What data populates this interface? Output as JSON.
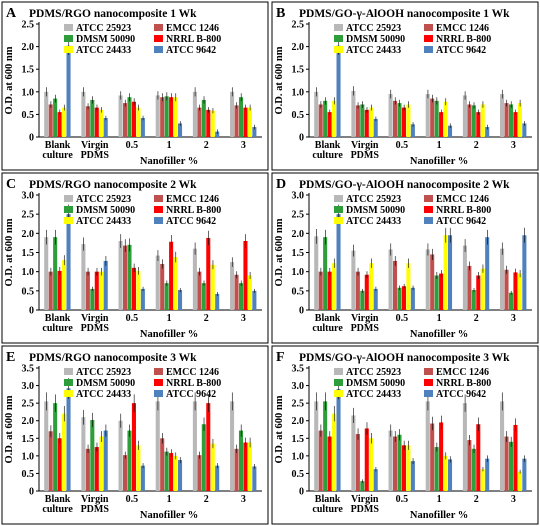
{
  "legend_labels": [
    "ATCC 25923",
    "EMCC 1246",
    "DMSM 50090",
    "NRRL B-800",
    "ATCC 24433",
    "ATCC 9642"
  ],
  "colors": {
    "ATCC 25923": "#b8b8b8",
    "EMCC 1246": "#c0504d",
    "DMSM 50090": "#2e9e3a",
    "NRRL B-800": "#ff0000",
    "ATCC 24433": "#ffff00",
    "ATCC 9642": "#4f81bd"
  },
  "chart_data": [
    {
      "type": "bar",
      "panel": "A",
      "title": "PDMS/RGO nanocomposite 1 Wk",
      "ylabel": "O.D. at 600 nm",
      "xlabel": "Nanofiller %",
      "ylim": [
        0,
        2.5
      ],
      "yticks": [
        0,
        0.5,
        1,
        1.5,
        2,
        2.5
      ],
      "categories": [
        "Blank culture",
        "Virgin PDMS",
        "0.5",
        "1",
        "2",
        "3"
      ],
      "series": [
        {
          "name": "ATCC 25923",
          "values": [
            1.0,
            1.0,
            0.92,
            0.92,
            1.0,
            1.0
          ]
        },
        {
          "name": "EMCC 1246",
          "values": [
            0.72,
            0.68,
            0.75,
            0.88,
            0.65,
            0.7
          ]
        },
        {
          "name": "DMSM 50090",
          "values": [
            0.85,
            0.82,
            0.88,
            0.9,
            0.82,
            0.88
          ]
        },
        {
          "name": "NRRL B-800",
          "values": [
            0.55,
            0.65,
            0.78,
            0.88,
            0.6,
            0.65
          ]
        },
        {
          "name": "ATCC 24433",
          "values": [
            0.65,
            0.6,
            0.65,
            0.88,
            0.58,
            0.65
          ]
        },
        {
          "name": "ATCC 9642",
          "values": [
            2.02,
            0.42,
            0.42,
            0.3,
            0.12,
            0.22
          ]
        }
      ]
    },
    {
      "type": "bar",
      "panel": "B",
      "title": "PDMS/GO-γ-AlOOH nanocomposite 1 Wk",
      "ylabel": "O.D. at 600 nm",
      "xlabel": "Nanofiller %",
      "ylim": [
        0,
        2.5
      ],
      "yticks": [
        0,
        0.5,
        1,
        1.5,
        2,
        2.5
      ],
      "categories": [
        "Blank culture",
        "Virgin PDMS",
        "0.5",
        "1",
        "2",
        "3"
      ],
      "series": [
        {
          "name": "ATCC 25923",
          "values": [
            1.0,
            1.02,
            0.95,
            0.95,
            0.92,
            0.95
          ]
        },
        {
          "name": "EMCC 1246",
          "values": [
            0.72,
            0.7,
            0.8,
            0.85,
            0.72,
            0.75
          ]
        },
        {
          "name": "DMSM 50090",
          "values": [
            0.8,
            0.72,
            0.75,
            0.8,
            0.7,
            0.72
          ]
        },
        {
          "name": "NRRL B-800",
          "values": [
            0.55,
            0.6,
            0.65,
            0.55,
            0.55,
            0.55
          ]
        },
        {
          "name": "ATCC 24433",
          "values": [
            0.8,
            0.65,
            0.72,
            0.78,
            0.72,
            0.75
          ]
        },
        {
          "name": "ATCC 9642",
          "values": [
            2.02,
            0.4,
            0.28,
            0.25,
            0.22,
            0.3
          ]
        }
      ]
    },
    {
      "type": "bar",
      "panel": "C",
      "title": "PDMS/RGO nanocomposite 2 Wk",
      "ylabel": "O.D. at 600 nm",
      "xlabel": "Nanofiller %",
      "ylim": [
        0,
        3.0
      ],
      "yticks": [
        0,
        0.5,
        1,
        1.5,
        2,
        2.5,
        3
      ],
      "categories": [
        "Blank culture",
        "Virgin PDMS",
        "0.5",
        "1",
        "2",
        "3"
      ],
      "series": [
        {
          "name": "ATCC 25923",
          "values": [
            1.9,
            1.72,
            1.8,
            1.42,
            1.6,
            1.25
          ]
        },
        {
          "name": "EMCC 1246",
          "values": [
            1.0,
            1.0,
            1.68,
            1.2,
            1.0,
            0.92
          ]
        },
        {
          "name": "DMSM 50090",
          "values": [
            1.9,
            0.55,
            1.7,
            0.7,
            0.7,
            0.7
          ]
        },
        {
          "name": "NRRL B-800",
          "values": [
            1.02,
            1.0,
            1.1,
            1.78,
            1.88,
            1.8
          ]
        },
        {
          "name": "ATCC 24433",
          "values": [
            1.3,
            1.0,
            1.02,
            1.38,
            1.18,
            0.9
          ]
        },
        {
          "name": "ATCC 9642",
          "values": [
            2.5,
            1.28,
            0.55,
            0.52,
            0.42,
            0.5
          ]
        }
      ]
    },
    {
      "type": "bar",
      "panel": "D",
      "title": "PDMS/GO-γ-AlOOH nanocomposite 2 Wk",
      "ylabel": "O.D. at 600 nm",
      "xlabel": "Nanofiller %",
      "ylim": [
        0,
        3.0
      ],
      "yticks": [
        0,
        0.5,
        1,
        1.5,
        2,
        2.5,
        3
      ],
      "categories": [
        "Blank culture",
        "Virgin PDMS",
        "0.5",
        "1",
        "2",
        "3"
      ],
      "series": [
        {
          "name": "ATCC 25923",
          "values": [
            1.92,
            1.55,
            1.58,
            1.58,
            1.68,
            1.6
          ]
        },
        {
          "name": "EMCC 1246",
          "values": [
            1.0,
            1.0,
            1.28,
            1.45,
            1.15,
            1.05
          ]
        },
        {
          "name": "DMSM 50090",
          "values": [
            1.9,
            0.5,
            0.58,
            0.9,
            0.52,
            0.45
          ]
        },
        {
          "name": "NRRL B-800",
          "values": [
            1.0,
            0.92,
            0.62,
            0.95,
            0.9,
            0.98
          ]
        },
        {
          "name": "ATCC 24433",
          "values": [
            1.22,
            1.22,
            1.22,
            1.95,
            1.08,
            0.95
          ]
        },
        {
          "name": "ATCC 9642",
          "values": [
            2.5,
            0.55,
            0.58,
            1.95,
            1.9,
            1.95
          ]
        }
      ]
    },
    {
      "type": "bar",
      "panel": "E",
      "title": "PDMS/RGO nanocomposite 3 Wk",
      "ylabel": "O.D. at 600 nm",
      "xlabel": "Nanofiller %",
      "ylim": [
        0,
        3.5
      ],
      "yticks": [
        0,
        0.5,
        1,
        1.5,
        2,
        2.5,
        3,
        3.5
      ],
      "categories": [
        "Blank culture",
        "Virgin PDMS",
        "0.5",
        "1",
        "2",
        "3"
      ],
      "series": [
        {
          "name": "ATCC 25923",
          "values": [
            2.55,
            2.1,
            2.0,
            2.55,
            2.55,
            2.55
          ]
        },
        {
          "name": "EMCC 1246",
          "values": [
            1.7,
            1.2,
            1.02,
            1.5,
            1.02,
            1.2
          ]
        },
        {
          "name": "DMSM 50090",
          "values": [
            2.5,
            2.02,
            1.72,
            1.12,
            1.9,
            1.72
          ]
        },
        {
          "name": "NRRL B-800",
          "values": [
            1.5,
            1.25,
            2.5,
            1.08,
            2.5,
            1.38
          ]
        },
        {
          "name": "ATCC 24433",
          "values": [
            2.2,
            1.55,
            1.3,
            1.0,
            1.35,
            1.38
          ]
        },
        {
          "name": "ATCC 9642",
          "values": [
            2.92,
            1.72,
            0.72,
            0.88,
            0.72,
            0.7
          ]
        }
      ]
    },
    {
      "type": "bar",
      "panel": "F",
      "title": "PDMS/GO-γ-AlOOH nanocomposite 3 Wk",
      "ylabel": "O.D. at 600 nm",
      "xlabel": "Nanofiller %",
      "ylim": [
        0,
        3.5
      ],
      "yticks": [
        0,
        0.5,
        1,
        1.5,
        2,
        2.5,
        3,
        3.5
      ],
      "categories": [
        "Blank culture",
        "Virgin PDMS",
        "0.5",
        "1",
        "2",
        "3"
      ],
      "series": [
        {
          "name": "ATCC 25923",
          "values": [
            2.55,
            2.15,
            1.72,
            2.55,
            2.5,
            2.55
          ]
        },
        {
          "name": "EMCC 1246",
          "values": [
            1.72,
            1.62,
            1.55,
            1.92,
            1.45,
            1.55
          ]
        },
        {
          "name": "DMSM 50090",
          "values": [
            2.55,
            0.28,
            1.6,
            1.25,
            1.2,
            1.4
          ]
        },
        {
          "name": "NRRL B-800",
          "values": [
            1.55,
            1.78,
            1.3,
            1.95,
            1.9,
            1.88
          ]
        },
        {
          "name": "ATCC 24433",
          "values": [
            2.2,
            1.5,
            1.3,
            1.0,
            0.62,
            0.55
          ]
        },
        {
          "name": "ATCC 9642",
          "values": [
            2.9,
            0.62,
            0.85,
            0.9,
            0.92,
            0.92
          ]
        }
      ]
    }
  ]
}
